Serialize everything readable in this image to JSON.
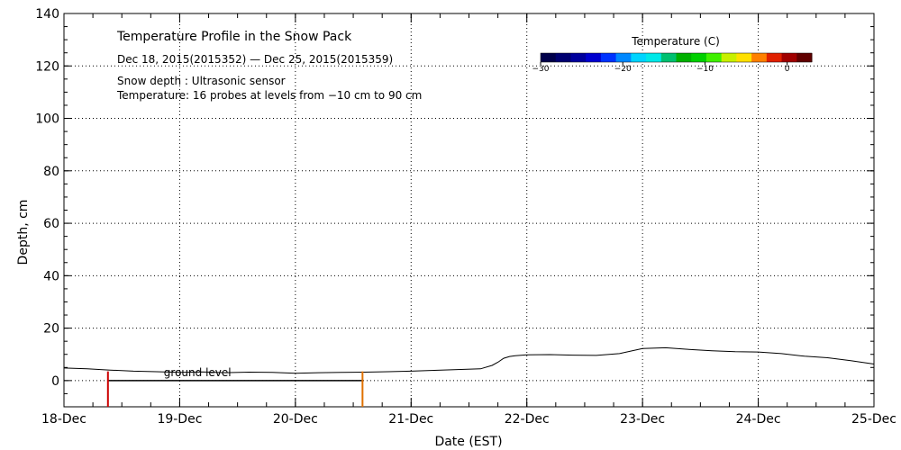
{
  "chart_data": {
    "type": "line",
    "title": "Temperature Profile in the Snow Pack",
    "date_range": "Dec 18, 2015(2015352) — Dec 25, 2015(2015359)",
    "notes": [
      "Snow depth : Ultrasonic sensor",
      "Temperature: 16 probes at levels from −10 cm to 90 cm"
    ],
    "xlabel": "Date (EST)",
    "ylabel": "Depth, cm",
    "x_ticks": [
      "18-Dec",
      "19-Dec",
      "20-Dec",
      "21-Dec",
      "22-Dec",
      "23-Dec",
      "24-Dec",
      "25-Dec"
    ],
    "xlim_days": [
      0,
      7
    ],
    "ylim": [
      -10,
      140
    ],
    "y_ticks": [
      0,
      20,
      40,
      60,
      80,
      100,
      120,
      140
    ],
    "grid": true,
    "ground_label": "ground level",
    "ground_level_segment_days": [
      0.38,
      2.58
    ],
    "series": [
      {
        "name": "",
        "color": "#000000",
        "x_days": [
          0,
          0.2,
          0.4,
          0.6,
          0.8,
          1.0,
          1.2,
          1.4,
          1.6,
          1.8,
          2.0,
          2.2,
          2.4,
          2.6,
          2.8,
          3.0,
          3.2,
          3.4,
          3.6,
          3.7,
          3.75,
          3.8,
          3.85,
          3.9,
          4.0,
          4.2,
          4.4,
          4.6,
          4.8,
          5.0,
          5.2,
          5.4,
          5.6,
          5.8,
          6.0,
          6.2,
          6.4,
          6.6,
          6.8,
          7.0
        ],
        "depth_cm": [
          4.8,
          4.5,
          4.0,
          3.6,
          3.4,
          3.1,
          3.3,
          3.0,
          3.2,
          3.1,
          2.8,
          3.0,
          3.1,
          3.2,
          3.4,
          3.6,
          3.9,
          4.2,
          4.5,
          5.8,
          7.0,
          8.5,
          9.2,
          9.5,
          9.8,
          9.9,
          9.7,
          9.6,
          10.3,
          12.2,
          12.5,
          11.9,
          11.4,
          11.0,
          10.9,
          10.3,
          9.3,
          8.7,
          7.6,
          6.3
        ]
      }
    ],
    "probe_markers": [
      {
        "x_day": 0.38,
        "color": "#cc0000"
      },
      {
        "x_day": 2.58,
        "color": "#e07000"
      }
    ],
    "colorbar": {
      "title": "Temperature (C)",
      "colors": [
        "#00004a",
        "#000070",
        "#00009c",
        "#0000cf",
        "#0033ff",
        "#0088ff",
        "#00d4ff",
        "#00e8e8",
        "#00c070",
        "#00b000",
        "#00d000",
        "#40f000",
        "#c8f000",
        "#ffe000",
        "#ff8000",
        "#e02000",
        "#a00000",
        "#600000"
      ],
      "tick_labels": [
        "−30",
        "−20",
        "−10",
        "0"
      ],
      "tick_values": [
        -30,
        -20,
        -10,
        0
      ],
      "range": [
        -30,
        3
      ]
    }
  }
}
